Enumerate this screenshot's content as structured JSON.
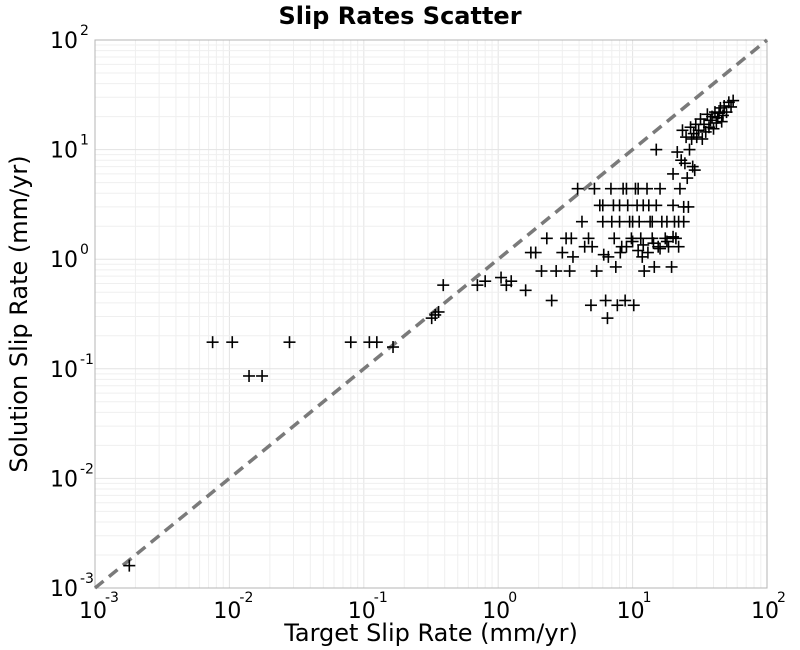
{
  "chart_data": {
    "type": "scatter",
    "title": "Slip Rates Scatter",
    "xlabel": "Target Slip Rate (mm/yr)",
    "ylabel": "Solution Slip Rate (mm/yr)",
    "xscale": "log",
    "yscale": "log",
    "xlim": [
      0.001,
      100
    ],
    "ylim": [
      0.001,
      100
    ],
    "grid": true,
    "legend": "none",
    "marker": "+",
    "marker_color": "#000000",
    "reference_line": {
      "type": "y=x",
      "style": "dashed",
      "color": "#7a7a7a"
    },
    "x_ticks": [
      {
        "base": "10",
        "exp": "-3"
      },
      {
        "base": "10",
        "exp": "-2"
      },
      {
        "base": "10",
        "exp": "-1"
      },
      {
        "base": "10",
        "exp": "0"
      },
      {
        "base": "10",
        "exp": "1"
      },
      {
        "base": "10",
        "exp": "2"
      }
    ],
    "y_ticks": [
      {
        "base": "10",
        "exp": "-3"
      },
      {
        "base": "10",
        "exp": "-2"
      },
      {
        "base": "10",
        "exp": "-1"
      },
      {
        "base": "10",
        "exp": "0"
      },
      {
        "base": "10",
        "exp": "1"
      },
      {
        "base": "10",
        "exp": "2"
      }
    ],
    "points": [
      [
        0.0018,
        0.0016
      ],
      [
        0.0075,
        0.175
      ],
      [
        0.0105,
        0.175
      ],
      [
        0.014,
        0.086
      ],
      [
        0.0175,
        0.086
      ],
      [
        0.028,
        0.175
      ],
      [
        0.08,
        0.175
      ],
      [
        0.11,
        0.175
      ],
      [
        0.125,
        0.175
      ],
      [
        0.165,
        0.158
      ],
      [
        0.32,
        0.29
      ],
      [
        0.34,
        0.31
      ],
      [
        0.36,
        0.33
      ],
      [
        0.39,
        0.58
      ],
      [
        0.7,
        0.58
      ],
      [
        0.8,
        0.63
      ],
      [
        1.05,
        0.68
      ],
      [
        1.15,
        0.58
      ],
      [
        1.25,
        0.63
      ],
      [
        1.6,
        0.52
      ],
      [
        1.75,
        1.15
      ],
      [
        1.9,
        1.15
      ],
      [
        2.1,
        0.78
      ],
      [
        2.3,
        1.55
      ],
      [
        2.5,
        0.42
      ],
      [
        2.7,
        0.78
      ],
      [
        3.0,
        1.15
      ],
      [
        3.2,
        1.55
      ],
      [
        3.4,
        0.78
      ],
      [
        3.5,
        1.55
      ],
      [
        3.6,
        1.05
      ],
      [
        3.9,
        4.4
      ],
      [
        4.2,
        2.2
      ],
      [
        4.4,
        1.3
      ],
      [
        4.7,
        1.55
      ],
      [
        4.9,
        0.38
      ],
      [
        5.2,
        4.4
      ],
      [
        5.4,
        0.78
      ],
      [
        5.7,
        3.1
      ],
      [
        6.0,
        2.2
      ],
      [
        6.3,
        0.42
      ],
      [
        6.5,
        0.29
      ],
      [
        6.6,
        1.05
      ],
      [
        6.9,
        4.4
      ],
      [
        7.2,
        3.1
      ],
      [
        7.5,
        0.85
      ],
      [
        7.7,
        0.38
      ],
      [
        8.0,
        2.2
      ],
      [
        8.3,
        1.3
      ],
      [
        8.5,
        4.4
      ],
      [
        8.8,
        0.42
      ],
      [
        9.2,
        3.1
      ],
      [
        9.5,
        2.2
      ],
      [
        9.8,
        1.55
      ],
      [
        10.2,
        0.38
      ],
      [
        10.5,
        4.4
      ],
      [
        10.8,
        3.1
      ],
      [
        11.2,
        2.2
      ],
      [
        11.5,
        1.55
      ],
      [
        11.8,
        1.05
      ],
      [
        12.2,
        0.78
      ],
      [
        12.8,
        4.4
      ],
      [
        13.2,
        3.1
      ],
      [
        13.5,
        2.2
      ],
      [
        14.0,
        1.55
      ],
      [
        14.5,
        0.85
      ],
      [
        15.0,
        10.0
      ],
      [
        15.5,
        1.3
      ],
      [
        16.5,
        2.2
      ],
      [
        17.5,
        1.55
      ],
      [
        18.5,
        1.3
      ],
      [
        19.5,
        0.85
      ],
      [
        20.0,
        6.0
      ],
      [
        20.5,
        2.2
      ],
      [
        21.0,
        1.55
      ],
      [
        21.5,
        9.5
      ],
      [
        22.0,
        1.3
      ],
      [
        22.5,
        4.4
      ],
      [
        23.0,
        8.0
      ],
      [
        23.5,
        15.0
      ],
      [
        24.0,
        3.0
      ],
      [
        24.5,
        7.5
      ],
      [
        25.0,
        13.0
      ],
      [
        25.5,
        5.5
      ],
      [
        26.0,
        3.0
      ],
      [
        26.5,
        10.0
      ],
      [
        27.0,
        16.0
      ],
      [
        27.5,
        12.5
      ],
      [
        28.0,
        7.0
      ],
      [
        28.5,
        14.0
      ],
      [
        29.0,
        6.5
      ],
      [
        29.5,
        17.0
      ],
      [
        30.0,
        13.0
      ],
      [
        31.0,
        15.0
      ],
      [
        32.0,
        19.0
      ],
      [
        33.0,
        12.5
      ],
      [
        34.0,
        17.0
      ],
      [
        35.0,
        14.5
      ],
      [
        36.0,
        21.0
      ],
      [
        37.0,
        16.0
      ],
      [
        38.0,
        18.5
      ],
      [
        39.0,
        20.0
      ],
      [
        40.0,
        15.5
      ],
      [
        41.0,
        22.0
      ],
      [
        42.0,
        17.5
      ],
      [
        43.0,
        19.5
      ],
      [
        44.0,
        21.5
      ],
      [
        45.0,
        24.0
      ],
      [
        46.0,
        18.0
      ],
      [
        47.0,
        20.5
      ],
      [
        48.0,
        25.0
      ],
      [
        50.0,
        22.0
      ],
      [
        52.0,
        27.0
      ],
      [
        54.0,
        24.5
      ],
      [
        56.0,
        28.0
      ],
      [
        5.0,
        1.3
      ],
      [
        6.1,
        1.1
      ],
      [
        7.3,
        1.55
      ],
      [
        8.1,
        1.15
      ],
      [
        9.0,
        1.3
      ],
      [
        10.0,
        1.45
      ],
      [
        11.0,
        1.2
      ],
      [
        12.0,
        1.35
      ],
      [
        13.0,
        1.15
      ],
      [
        14.3,
        1.4
      ],
      [
        16.0,
        1.25
      ],
      [
        18.0,
        1.45
      ],
      [
        20.0,
        1.6
      ],
      [
        6.0,
        3.1
      ],
      [
        7.0,
        2.2
      ],
      [
        8.0,
        3.1
      ],
      [
        9.0,
        4.4
      ],
      [
        10.0,
        2.2
      ],
      [
        11.0,
        4.4
      ],
      [
        12.0,
        3.1
      ],
      [
        14.0,
        2.2
      ],
      [
        15.0,
        3.1
      ],
      [
        16.0,
        4.4
      ],
      [
        18.0,
        2.2
      ],
      [
        20.0,
        3.1
      ],
      [
        22.0,
        2.2
      ],
      [
        24.0,
        2.2
      ]
    ]
  }
}
